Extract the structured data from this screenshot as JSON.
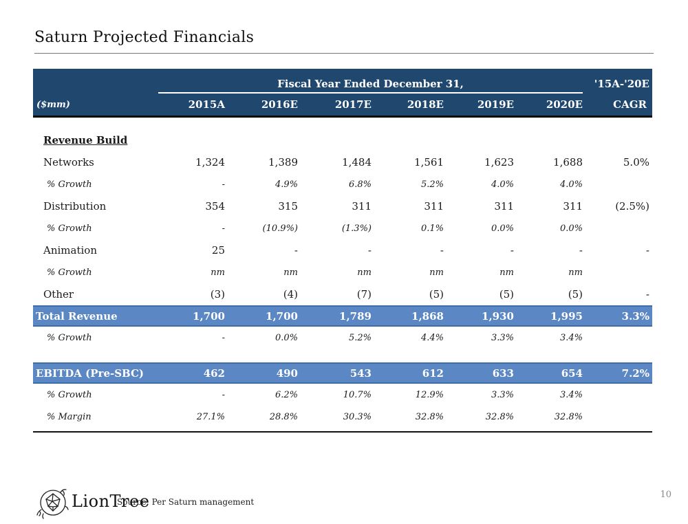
{
  "page": {
    "title": "Saturn Projected Financials",
    "page_number": "10"
  },
  "colors": {
    "header_bg": "#20486F",
    "highlight_bg": "#5B87C4",
    "highlight_border": "#3F6CA5",
    "text": "#1a1a1a",
    "page_number": "#8a8a8a"
  },
  "table": {
    "col_group_header": "Fiscal Year Ended December 31,",
    "cagr_group_header": "'15A-'20E",
    "units_label": "($mm)",
    "columns": [
      "2015A",
      "2016E",
      "2017E",
      "2018E",
      "2019E",
      "2020E",
      "CAGR"
    ],
    "rows": [
      {
        "label": "Revenue Build",
        "type": "section",
        "values": [
          "",
          "",
          "",
          "",
          "",
          ""
        ],
        "cagr": ""
      },
      {
        "label": "Networks",
        "type": "data",
        "values": [
          "1,324",
          "1,389",
          "1,484",
          "1,561",
          "1,623",
          "1,688"
        ],
        "cagr": "5.0%"
      },
      {
        "label": "% Growth",
        "type": "growth",
        "values": [
          "-",
          "4.9%",
          "6.8%",
          "5.2%",
          "4.0%",
          "4.0%"
        ],
        "cagr": ""
      },
      {
        "label": "Distribution",
        "type": "data",
        "values": [
          "354",
          "315",
          "311",
          "311",
          "311",
          "311"
        ],
        "cagr": "(2.5%)"
      },
      {
        "label": "% Growth",
        "type": "growth",
        "values": [
          "-",
          "(10.9%)",
          "(1.3%)",
          "0.1%",
          "0.0%",
          "0.0%"
        ],
        "cagr": ""
      },
      {
        "label": "Animation",
        "type": "data",
        "values": [
          "25",
          "-",
          "-",
          "-",
          "-",
          "-"
        ],
        "cagr": "-"
      },
      {
        "label": "% Growth",
        "type": "growth",
        "values": [
          "nm",
          "nm",
          "nm",
          "nm",
          "nm",
          "nm"
        ],
        "cagr": ""
      },
      {
        "label": "Other",
        "type": "data",
        "values": [
          "(3)",
          "(4)",
          "(7)",
          "(5)",
          "(5)",
          "(5)"
        ],
        "cagr": "-"
      },
      {
        "label": "Total Revenue",
        "type": "highlight",
        "values": [
          "1,700",
          "1,700",
          "1,789",
          "1,868",
          "1,930",
          "1,995"
        ],
        "cagr": "3.3%"
      },
      {
        "label": "% Growth",
        "type": "growth",
        "values": [
          "-",
          "0.0%",
          "5.2%",
          "4.4%",
          "3.3%",
          "3.4%"
        ],
        "cagr": ""
      },
      {
        "label": "EBITDA (Pre-SBC)",
        "type": "highlight",
        "gap_before": true,
        "values": [
          "462",
          "490",
          "543",
          "612",
          "633",
          "654"
        ],
        "cagr": "7.2%"
      },
      {
        "label": "% Growth",
        "type": "growth",
        "values": [
          "-",
          "6.2%",
          "10.7%",
          "12.9%",
          "3.3%",
          "3.4%"
        ],
        "cagr": ""
      },
      {
        "label": "% Margin",
        "type": "growth",
        "values": [
          "27.1%",
          "28.8%",
          "30.3%",
          "32.8%",
          "32.8%",
          "32.8%"
        ],
        "cagr": ""
      }
    ]
  },
  "footer": {
    "brand": "LionTree",
    "source_note": "Source: Per Saturn management"
  }
}
